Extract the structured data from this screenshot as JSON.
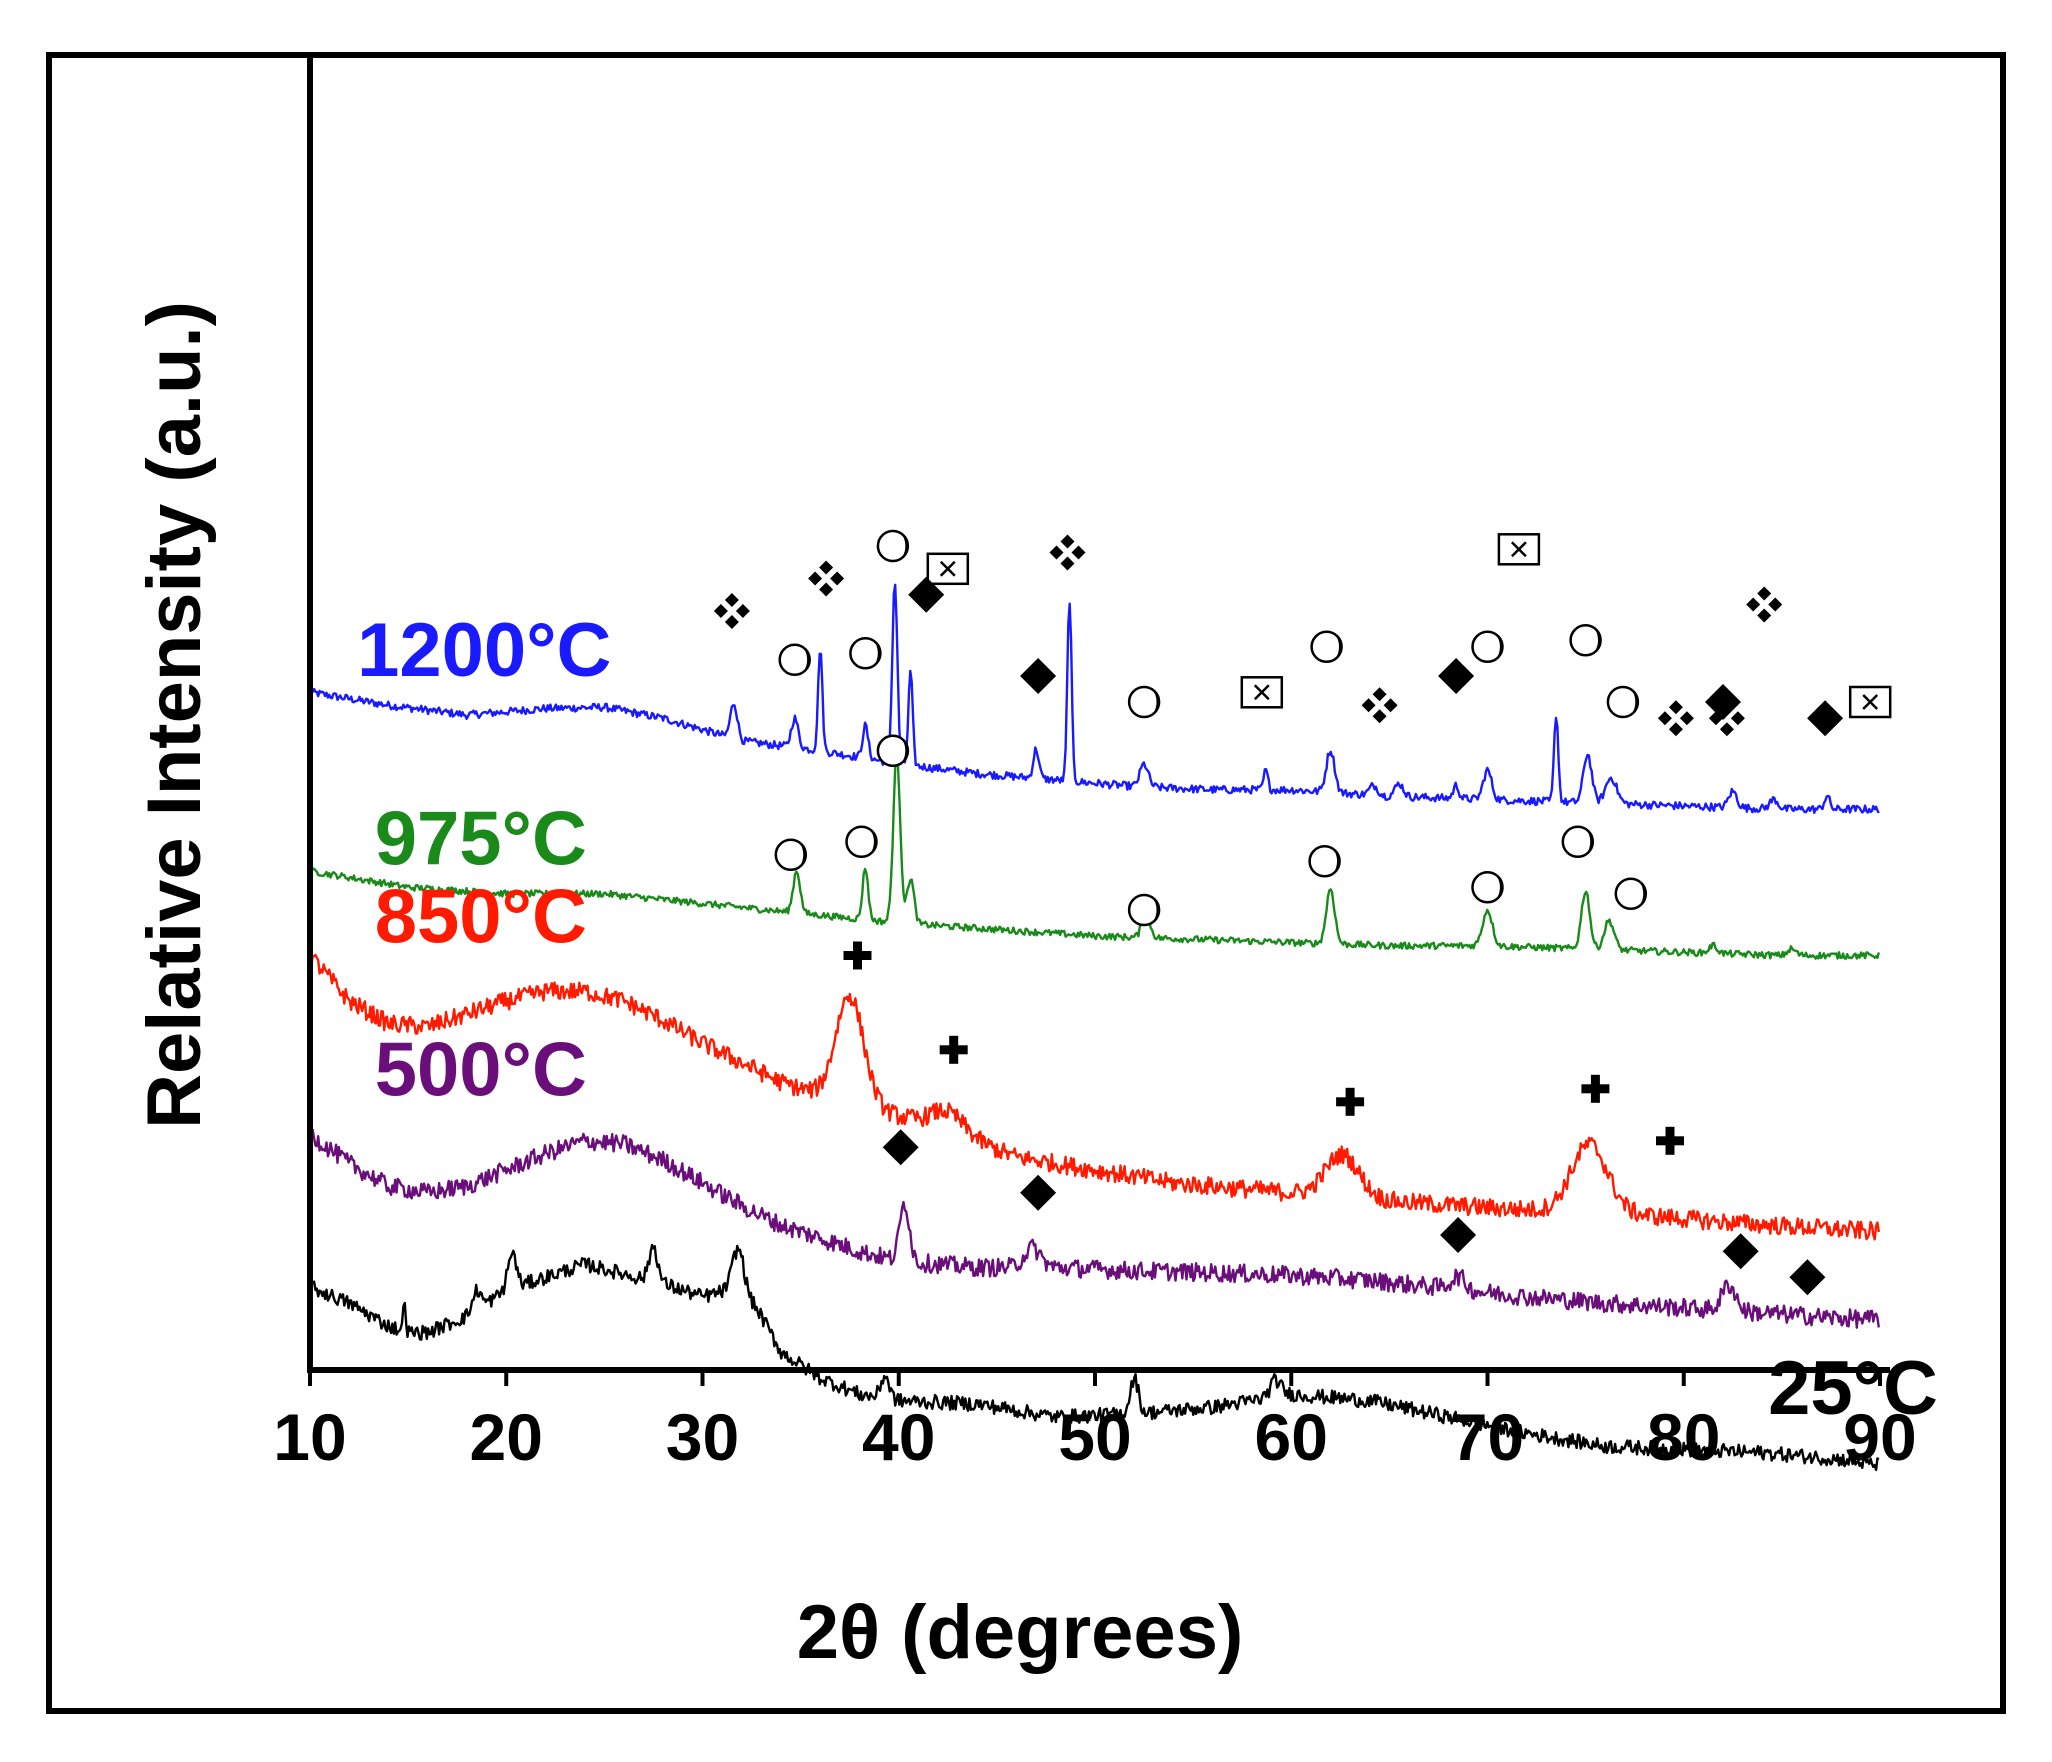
{
  "chart_data": {
    "type": "line",
    "title": "",
    "xlabel": "2θ (degrees)",
    "ylabel": "Relative Intensity (a.u.)",
    "xlim": [
      10,
      90
    ],
    "xticks": [
      "10",
      "20",
      "30",
      "40",
      "50",
      "60",
      "70",
      "80",
      "90"
    ],
    "yticks": [],
    "grid": false,
    "legend": "none (series labels at left of each trace)",
    "series": [
      {
        "name": "1200°C",
        "color": "#1a1aff",
        "noise": 0.12,
        "points": [
          [
            10,
            9.35
          ],
          [
            14,
            9.15
          ],
          [
            18,
            9.0
          ],
          [
            22,
            9.1
          ],
          [
            25,
            9.12
          ],
          [
            28,
            8.95
          ],
          [
            32,
            8.6
          ],
          [
            36,
            8.45
          ],
          [
            40,
            8.25
          ],
          [
            44,
            8.1
          ],
          [
            48,
            8.0
          ],
          [
            52,
            7.9
          ],
          [
            56,
            7.85
          ],
          [
            60,
            7.85
          ],
          [
            65,
            7.75
          ],
          [
            70,
            7.7
          ],
          [
            75,
            7.65
          ],
          [
            80,
            7.6
          ],
          [
            85,
            7.55
          ],
          [
            90,
            7.55
          ]
        ],
        "peaks": [
          [
            31.6,
            0.55,
            0.25
          ],
          [
            34.7,
            0.45,
            0.25
          ],
          [
            36.0,
            1.6,
            0.15
          ],
          [
            38.3,
            0.5,
            0.2
          ],
          [
            39.8,
            2.8,
            0.18
          ],
          [
            40.6,
            1.45,
            0.15
          ],
          [
            47.0,
            0.45,
            0.2
          ],
          [
            48.7,
            2.8,
            0.15
          ],
          [
            52.5,
            0.35,
            0.3
          ],
          [
            58.7,
            0.3,
            0.15
          ],
          [
            62.0,
            0.65,
            0.3
          ],
          [
            64.2,
            0.15,
            0.3
          ],
          [
            65.5,
            0.2,
            0.3
          ],
          [
            68.4,
            0.2,
            0.2
          ],
          [
            70.0,
            0.45,
            0.3
          ],
          [
            73.5,
            1.35,
            0.15
          ],
          [
            75.1,
            0.75,
            0.3
          ],
          [
            76.3,
            0.4,
            0.4
          ],
          [
            82.5,
            0.25,
            0.3
          ],
          [
            84.6,
            0.15,
            0.3
          ],
          [
            87.3,
            0.2,
            0.2
          ]
        ]
      },
      {
        "name": "975°C",
        "color": "#1a8a1a",
        "noise": 0.1,
        "points": [
          [
            10,
            6.6
          ],
          [
            15,
            6.35
          ],
          [
            20,
            6.25
          ],
          [
            25,
            6.25
          ],
          [
            30,
            6.1
          ],
          [
            35,
            5.95
          ],
          [
            40,
            5.8
          ],
          [
            45,
            5.7
          ],
          [
            50,
            5.6
          ],
          [
            55,
            5.55
          ],
          [
            60,
            5.5
          ],
          [
            65,
            5.45
          ],
          [
            70,
            5.45
          ],
          [
            75,
            5.4
          ],
          [
            80,
            5.35
          ],
          [
            85,
            5.3
          ],
          [
            90,
            5.3
          ]
        ],
        "peaks": [
          [
            34.8,
            0.65,
            0.25
          ],
          [
            38.3,
            0.8,
            0.2
          ],
          [
            39.9,
            2.6,
            0.25
          ],
          [
            40.6,
            0.7,
            0.25
          ],
          [
            52.6,
            0.35,
            0.3
          ],
          [
            62.0,
            0.85,
            0.3
          ],
          [
            70.0,
            0.55,
            0.35
          ],
          [
            75.0,
            0.9,
            0.3
          ],
          [
            76.2,
            0.45,
            0.35
          ],
          [
            81.5,
            0.12,
            0.3
          ],
          [
            85.5,
            0.1,
            0.3
          ]
        ]
      },
      {
        "name": "850°C",
        "color": "#ff1a00",
        "noise": 0.28,
        "points": [
          [
            10,
            5.3
          ],
          [
            12,
            4.6
          ],
          [
            14,
            4.25
          ],
          [
            16,
            4.2
          ],
          [
            18,
            4.4
          ],
          [
            20,
            4.6
          ],
          [
            22,
            4.75
          ],
          [
            24,
            4.75
          ],
          [
            26,
            4.6
          ],
          [
            28,
            4.3
          ],
          [
            30,
            3.95
          ],
          [
            32,
            3.65
          ],
          [
            34,
            3.35
          ],
          [
            36,
            3.15
          ],
          [
            38,
            3.0
          ],
          [
            42,
            2.65
          ],
          [
            46,
            2.2
          ],
          [
            50,
            2.0
          ],
          [
            54,
            1.8
          ],
          [
            58,
            1.7
          ],
          [
            62,
            1.6
          ],
          [
            66,
            1.5
          ],
          [
            70,
            1.42
          ],
          [
            74,
            1.36
          ],
          [
            78,
            1.3
          ],
          [
            82,
            1.2
          ],
          [
            86,
            1.12
          ],
          [
            90,
            1.05
          ]
        ],
        "peaks": [
          [
            37.5,
            1.65,
            1.0
          ],
          [
            42.5,
            0.3,
            1.2
          ],
          [
            62.6,
            0.65,
            1.2
          ],
          [
            75.2,
            1.05,
            1.3
          ]
        ]
      },
      {
        "name": "500°C",
        "color": "#6a0f7a",
        "noise": 0.28,
        "points": [
          [
            10,
            2.55
          ],
          [
            12,
            2.1
          ],
          [
            14,
            1.75
          ],
          [
            16,
            1.65
          ],
          [
            18,
            1.75
          ],
          [
            20,
            2.0
          ],
          [
            22,
            2.25
          ],
          [
            24,
            2.45
          ],
          [
            26,
            2.4
          ],
          [
            28,
            2.15
          ],
          [
            30,
            1.8
          ],
          [
            32,
            1.45
          ],
          [
            34,
            1.15
          ],
          [
            36,
            0.95
          ],
          [
            38,
            0.75
          ],
          [
            40,
            0.6
          ],
          [
            44,
            0.5
          ],
          [
            48,
            0.5
          ],
          [
            52,
            0.45
          ],
          [
            56,
            0.42
          ],
          [
            60,
            0.38
          ],
          [
            64,
            0.3
          ],
          [
            68,
            0.18
          ],
          [
            72,
            0.05
          ],
          [
            76,
            -0.05
          ],
          [
            80,
            -0.12
          ],
          [
            84,
            -0.2
          ],
          [
            88,
            -0.28
          ],
          [
            90,
            -0.3
          ]
        ],
        "peaks": [
          [
            40.3,
            0.9,
            0.35
          ],
          [
            46.8,
            0.3,
            0.6
          ],
          [
            68.5,
            0.2,
            0.5
          ],
          [
            82.3,
            0.4,
            0.5
          ]
        ]
      },
      {
        "name": "25°C",
        "color": "#000000",
        "noise": 0.22,
        "points": [
          [
            10,
            0.2
          ],
          [
            12,
            -0.05
          ],
          [
            14,
            -0.4
          ],
          [
            15,
            -0.5
          ],
          [
            16,
            -0.5
          ],
          [
            18,
            -0.25
          ],
          [
            20,
            0.15
          ],
          [
            22,
            0.35
          ],
          [
            24,
            0.55
          ],
          [
            26,
            0.4
          ],
          [
            28,
            0.25
          ],
          [
            30,
            0.05
          ],
          [
            32,
            0.2
          ],
          [
            33,
            -0.25
          ],
          [
            34,
            -0.8
          ],
          [
            36,
            -1.2
          ],
          [
            38,
            -1.45
          ],
          [
            40,
            -1.55
          ],
          [
            44,
            -1.6
          ],
          [
            48,
            -1.8
          ],
          [
            52,
            -1.75
          ],
          [
            56,
            -1.65
          ],
          [
            60,
            -1.45
          ],
          [
            64,
            -1.55
          ],
          [
            68,
            -1.8
          ],
          [
            72,
            -2.05
          ],
          [
            76,
            -2.25
          ],
          [
            80,
            -2.3
          ],
          [
            84,
            -2.35
          ],
          [
            88,
            -2.45
          ],
          [
            90,
            -2.55
          ]
        ],
        "peaks": [
          [
            14.8,
            0.7,
            0.06
          ],
          [
            18.5,
            0.3,
            0.3
          ],
          [
            20.3,
            0.55,
            0.3
          ],
          [
            27.5,
            0.55,
            0.3
          ],
          [
            31.8,
            0.6,
            0.4
          ],
          [
            39.3,
            0.35,
            0.3
          ],
          [
            52.0,
            0.55,
            0.3
          ],
          [
            59.2,
            0.25,
            0.4
          ]
        ]
      }
    ],
    "series_labels": [
      {
        "text": "1200°C",
        "color": "#1a1aff",
        "x": 12.4,
        "y": 10.0
      },
      {
        "text": "975°C",
        "color": "#1a8a1a",
        "x": 13.3,
        "y": 7.1
      },
      {
        "text": "850°C",
        "color": "#ff1a00",
        "x": 13.3,
        "y": 5.9
      },
      {
        "text": "500°C",
        "color": "#6a0f7a",
        "x": 13.3,
        "y": 3.55
      },
      {
        "text": "25°C",
        "color": "#000000",
        "x": 84.3,
        "y": -1.35
      }
    ],
    "markers": [
      {
        "symbol": "cross4",
        "x": 31.5,
        "y": 10.6
      },
      {
        "symbol": "cross4",
        "x": 36.3,
        "y": 11.1
      },
      {
        "symbol": "cross4",
        "x": 48.6,
        "y": 11.5
      },
      {
        "symbol": "cross4",
        "x": 84.1,
        "y": 10.7
      },
      {
        "symbol": "cross4",
        "x": 64.5,
        "y": 9.15
      },
      {
        "symbol": "cross4",
        "x": 79.6,
        "y": 8.95
      },
      {
        "symbol": "cross4",
        "x": 82.2,
        "y": 8.95
      },
      {
        "symbol": "circle",
        "x": 34.7,
        "y": 9.85
      },
      {
        "symbol": "circle",
        "x": 38.3,
        "y": 9.95
      },
      {
        "symbol": "circle",
        "x": 39.7,
        "y": 11.6
      },
      {
        "symbol": "circle",
        "x": 52.5,
        "y": 9.2
      },
      {
        "symbol": "circle",
        "x": 61.8,
        "y": 10.05
      },
      {
        "symbol": "circle",
        "x": 70.0,
        "y": 10.05
      },
      {
        "symbol": "circle",
        "x": 75.0,
        "y": 10.15
      },
      {
        "symbol": "circle",
        "x": 76.9,
        "y": 9.2
      },
      {
        "symbol": "circle",
        "x": 39.7,
        "y": 8.45
      },
      {
        "symbol": "circle",
        "x": 34.5,
        "y": 6.85
      },
      {
        "symbol": "circle",
        "x": 38.1,
        "y": 7.05
      },
      {
        "symbol": "circle",
        "x": 52.5,
        "y": 6.0
      },
      {
        "symbol": "circle",
        "x": 61.7,
        "y": 6.75
      },
      {
        "symbol": "circle",
        "x": 70.0,
        "y": 6.35
      },
      {
        "symbol": "circle",
        "x": 74.6,
        "y": 7.05
      },
      {
        "symbol": "circle",
        "x": 77.3,
        "y": 6.25
      },
      {
        "symbol": "box",
        "x": 42.5,
        "y": 11.25
      },
      {
        "symbol": "box",
        "x": 71.6,
        "y": 11.55
      },
      {
        "symbol": "box",
        "x": 58.5,
        "y": 9.35
      },
      {
        "symbol": "box",
        "x": 89.5,
        "y": 9.2
      },
      {
        "symbol": "diamond",
        "x": 41.4,
        "y": 10.85
      },
      {
        "symbol": "diamond",
        "x": 47.1,
        "y": 9.6
      },
      {
        "symbol": "diamond",
        "x": 68.4,
        "y": 9.6
      },
      {
        "symbol": "diamond",
        "x": 82.0,
        "y": 9.2
      },
      {
        "symbol": "diamond",
        "x": 87.2,
        "y": 8.95
      },
      {
        "symbol": "diamond",
        "x": 40.1,
        "y": 2.35
      },
      {
        "symbol": "diamond",
        "x": 47.1,
        "y": 1.65
      },
      {
        "symbol": "diamond",
        "x": 68.5,
        "y": 1.0
      },
      {
        "symbol": "diamond",
        "x": 82.9,
        "y": 0.75
      },
      {
        "symbol": "diamond",
        "x": 86.3,
        "y": 0.35
      },
      {
        "symbol": "plus",
        "x": 37.9,
        "y": 5.3
      },
      {
        "symbol": "plus",
        "x": 42.8,
        "y": 3.85
      },
      {
        "symbol": "plus",
        "x": 63.0,
        "y": 3.05
      },
      {
        "symbol": "plus",
        "x": 75.5,
        "y": 3.25
      },
      {
        "symbol": "plus",
        "x": 79.3,
        "y": 2.45
      }
    ]
  }
}
